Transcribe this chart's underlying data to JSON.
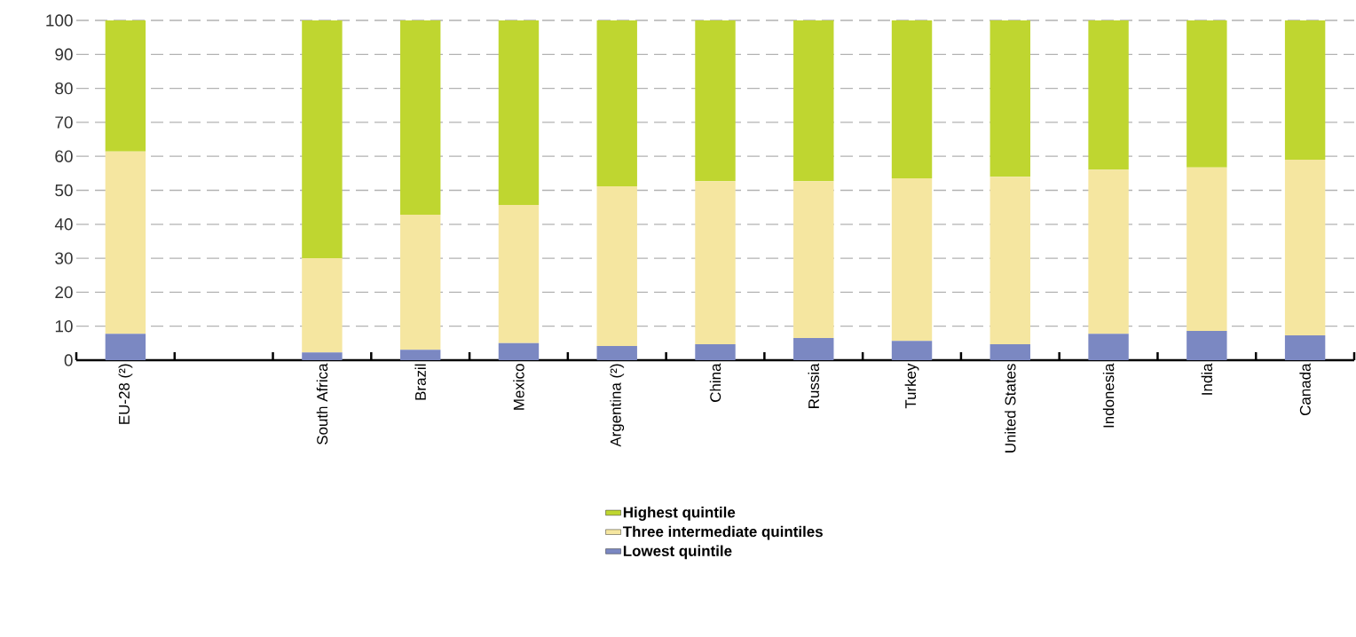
{
  "chart_data": {
    "type": "bar",
    "stacked": true,
    "grid": "y",
    "legend": "bottom",
    "categories": [
      "EU-28 (²)",
      null,
      "South Africa",
      "Brazil",
      "Mexico",
      "Argentina (²)",
      "China",
      "Russia",
      "Turkey",
      "United States",
      "Indonesia",
      "India",
      "Canada"
    ],
    "ylim": [
      0,
      100
    ],
    "yticks": [
      0,
      10,
      20,
      30,
      40,
      50,
      60,
      70,
      80,
      90,
      100
    ],
    "series": [
      {
        "name": "Lowest quintile",
        "color": "#7b88c2",
        "values": [
          7.8,
          null,
          2.3,
          3.1,
          5,
          4.2,
          4.7,
          6.5,
          5.7,
          4.7,
          7.8,
          8.6,
          7.3
        ]
      },
      {
        "name": "Three intermediate quintiles",
        "color": "#f5e6a0",
        "values": [
          53.6,
          null,
          27.7,
          39.7,
          40.7,
          47,
          48,
          46.2,
          47.8,
          49.3,
          48.3,
          48.1,
          51.7
        ]
      },
      {
        "name": "Highest quintile",
        "color": "#bfd630",
        "values": [
          38.6,
          null,
          70,
          57.2,
          54.3,
          48.8,
          47.3,
          47.3,
          46.5,
          46,
          43.9,
          43.3,
          41
        ]
      }
    ]
  }
}
